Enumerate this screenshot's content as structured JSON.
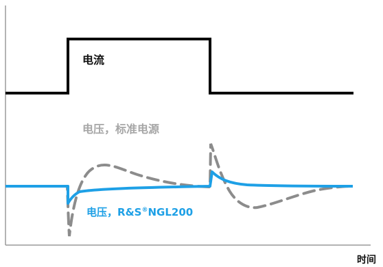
{
  "diagram": {
    "labels": {
      "current": "电流",
      "voltage_standard": "电压，标准电源",
      "voltage_ngl_prefix": "电压，",
      "voltage_ngl_brand": "R&S",
      "voltage_ngl_registered": "®",
      "voltage_ngl_model": "NGL200",
      "time_axis": "时间"
    },
    "colors": {
      "axis": "#9a9a9a",
      "current_trace": "#000000",
      "standard_voltage_trace": "#8c8c8c",
      "standard_voltage_label": "#a6a6a6",
      "ngl_voltage_trace": "#1ea0e6",
      "ngl_voltage_label": "#1ea0e6",
      "text_dark": "#111111"
    }
  }
}
